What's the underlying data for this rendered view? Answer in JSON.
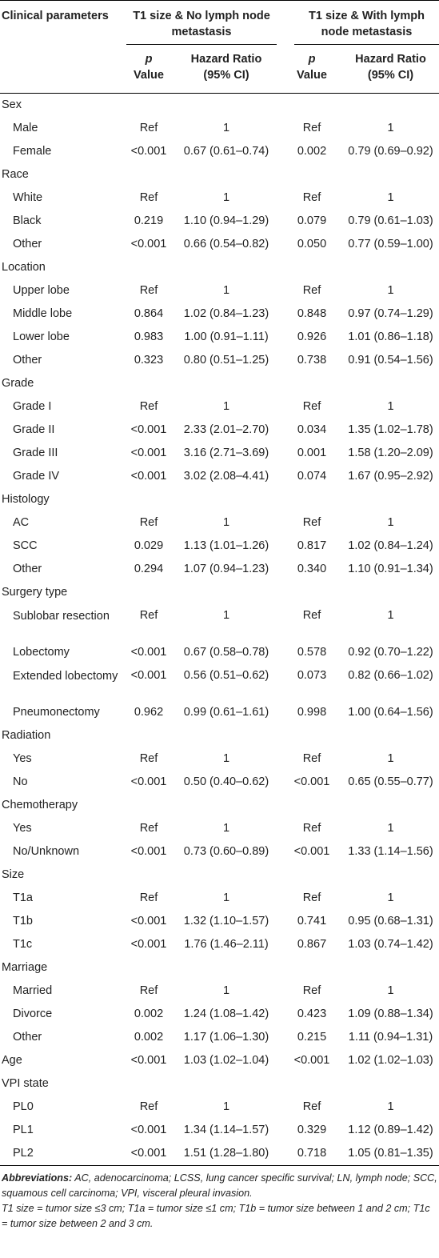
{
  "header": {
    "col_label": "Clinical parameters",
    "group1": "T1 size & No lymph node metastasis",
    "group2": "T1 size & With lymph node metastasis",
    "p_letter": "p",
    "p_word": "Value",
    "hr_line1": "Hazard Ratio",
    "hr_line2": "(95% CI)"
  },
  "rows": [
    {
      "type": "cat",
      "label": "Sex"
    },
    {
      "type": "sub",
      "label": "Male",
      "p1": "Ref",
      "hr1": "1",
      "p2": "Ref",
      "hr2": "1"
    },
    {
      "type": "sub",
      "label": "Female",
      "p1": "<0.001",
      "hr1": "0.67 (0.61–0.74)",
      "p2": "0.002",
      "hr2": "0.79 (0.69–0.92)"
    },
    {
      "type": "cat",
      "label": "Race"
    },
    {
      "type": "sub",
      "label": "White",
      "p1": "Ref",
      "hr1": "1",
      "p2": "Ref",
      "hr2": "1"
    },
    {
      "type": "sub",
      "label": "Black",
      "p1": "0.219",
      "hr1": "1.10 (0.94–1.29)",
      "p2": "0.079",
      "hr2": "0.79 (0.61–1.03)"
    },
    {
      "type": "sub",
      "label": "Other",
      "p1": "<0.001",
      "hr1": "0.66 (0.54–0.82)",
      "p2": "0.050",
      "hr2": "0.77 (0.59–1.00)"
    },
    {
      "type": "cat",
      "label": "Location"
    },
    {
      "type": "sub",
      "label": "Upper lobe",
      "p1": "Ref",
      "hr1": "1",
      "p2": "Ref",
      "hr2": "1"
    },
    {
      "type": "sub",
      "label": "Middle lobe",
      "p1": "0.864",
      "hr1": "1.02 (0.84–1.23)",
      "p2": "0.848",
      "hr2": "0.97 (0.74–1.29)"
    },
    {
      "type": "sub",
      "label": "Lower lobe",
      "p1": "0.983",
      "hr1": "1.00 (0.91–1.11)",
      "p2": "0.926",
      "hr2": "1.01 (0.86–1.18)"
    },
    {
      "type": "sub",
      "label": "Other",
      "p1": "0.323",
      "hr1": "0.80 (0.51–1.25)",
      "p2": "0.738",
      "hr2": "0.91 (0.54–1.56)"
    },
    {
      "type": "cat",
      "label": "Grade"
    },
    {
      "type": "sub",
      "label": "Grade I",
      "p1": "Ref",
      "hr1": "1",
      "p2": "Ref",
      "hr2": "1"
    },
    {
      "type": "sub",
      "label": "Grade II",
      "p1": "<0.001",
      "hr1": "2.33 (2.01–2.70)",
      "p2": "0.034",
      "hr2": "1.35 (1.02–1.78)"
    },
    {
      "type": "sub",
      "label": "Grade III",
      "p1": "<0.001",
      "hr1": "3.16 (2.71–3.69)",
      "p2": "0.001",
      "hr2": "1.58 (1.20–2.09)"
    },
    {
      "type": "sub",
      "label": "Grade IV",
      "p1": "<0.001",
      "hr1": "3.02 (2.08–4.41)",
      "p2": "0.074",
      "hr2": "1.67 (0.95–2.92)"
    },
    {
      "type": "cat",
      "label": "Histology"
    },
    {
      "type": "sub",
      "label": "AC",
      "p1": "Ref",
      "hr1": "1",
      "p2": "Ref",
      "hr2": "1"
    },
    {
      "type": "sub",
      "label": "SCC",
      "p1": "0.029",
      "hr1": "1.13 (1.01–1.26)",
      "p2": "0.817",
      "hr2": "1.02 (0.84–1.24)"
    },
    {
      "type": "sub",
      "label": "Other",
      "p1": "0.294",
      "hr1": "1.07 (0.94–1.23)",
      "p2": "0.340",
      "hr2": "1.10 (0.91–1.34)"
    },
    {
      "type": "cat",
      "label": "Surgery type"
    },
    {
      "type": "sub",
      "tall": true,
      "label": "Sublobar resection",
      "p1": "Ref",
      "hr1": "1",
      "p2": "Ref",
      "hr2": "1"
    },
    {
      "type": "sub",
      "label": "Lobectomy",
      "p1": "<0.001",
      "hr1": "0.67 (0.58–0.78)",
      "p2": "0.578",
      "hr2": "0.92 (0.70–1.22)"
    },
    {
      "type": "sub",
      "tall": true,
      "label": "Extended lobectomy",
      "p1": "<0.001",
      "hr1": "0.56 (0.51–0.62)",
      "p2": "0.073",
      "hr2": "0.82 (0.66–1.02)"
    },
    {
      "type": "sub",
      "label": "Pneumonectomy",
      "p1": "0.962",
      "hr1": "0.99 (0.61–1.61)",
      "p2": "0.998",
      "hr2": "1.00 (0.64–1.56)"
    },
    {
      "type": "cat",
      "label": "Radiation"
    },
    {
      "type": "sub",
      "label": "Yes",
      "p1": "Ref",
      "hr1": "1",
      "p2": "Ref",
      "hr2": "1"
    },
    {
      "type": "sub",
      "label": "No",
      "p1": "<0.001",
      "hr1": "0.50 (0.40–0.62)",
      "p2": "<0.001",
      "hr2": "0.65 (0.55–0.77)"
    },
    {
      "type": "cat",
      "label": "Chemotherapy"
    },
    {
      "type": "sub",
      "label": "Yes",
      "p1": "Ref",
      "hr1": "1",
      "p2": "Ref",
      "hr2": "1"
    },
    {
      "type": "sub",
      "label": "No/Unknown",
      "p1": "<0.001",
      "hr1": "0.73 (0.60–0.89)",
      "p2": "<0.001",
      "hr2": "1.33 (1.14–1.56)"
    },
    {
      "type": "cat",
      "label": "Size"
    },
    {
      "type": "sub",
      "label": "T1a",
      "p1": "Ref",
      "hr1": "1",
      "p2": "Ref",
      "hr2": "1"
    },
    {
      "type": "sub",
      "label": "T1b",
      "p1": "<0.001",
      "hr1": "1.32 (1.10–1.57)",
      "p2": "0.741",
      "hr2": "0.95 (0.68–1.31)"
    },
    {
      "type": "sub",
      "label": "T1c",
      "p1": "<0.001",
      "hr1": "1.76 (1.46–2.11)",
      "p2": "0.867",
      "hr2": "1.03 (0.74–1.42)"
    },
    {
      "type": "cat",
      "label": "Marriage"
    },
    {
      "type": "sub",
      "label": "Married",
      "p1": "Ref",
      "hr1": "1",
      "p2": "Ref",
      "hr2": "1"
    },
    {
      "type": "sub",
      "label": "Divorce",
      "p1": "0.002",
      "hr1": "1.24 (1.08–1.42)",
      "p2": "0.423",
      "hr2": "1.09 (0.88–1.34)"
    },
    {
      "type": "sub",
      "label": "Other",
      "p1": "0.002",
      "hr1": "1.17 (1.06–1.30)",
      "p2": "0.215",
      "hr2": "1.11 (0.94–1.31)"
    },
    {
      "type": "cat",
      "label": "Age",
      "p1": "<0.001",
      "hr1": "1.03 (1.02–1.04)",
      "p2": "<0.001",
      "hr2": "1.02 (1.02–1.03)"
    },
    {
      "type": "cat",
      "label": "VPI state"
    },
    {
      "type": "sub",
      "label": "PL0",
      "p1": "Ref",
      "hr1": "1",
      "p2": "Ref",
      "hr2": "1"
    },
    {
      "type": "sub",
      "label": "PL1",
      "p1": "<0.001",
      "hr1": "1.34 (1.14–1.57)",
      "p2": "0.329",
      "hr2": "1.12 (0.89–1.42)"
    },
    {
      "type": "sub",
      "label": "PL2",
      "p1": "<0.001",
      "hr1": "1.51 (1.28–1.80)",
      "p2": "0.718",
      "hr2": "1.05 (0.81–1.35)"
    }
  ],
  "footnote": {
    "abbr_label": "Abbreviations:",
    "abbr_text": " AC, adenocarcinoma; LCSS, lung cancer specific survival; LN, lymph node; SCC, squamous cell carcinoma; VPI, visceral pleural invasion.",
    "size_text": "T1 size = tumor size ≤3 cm; T1a = tumor size ≤1 cm; T1b = tumor size between 1 and 2 cm; T1c = tumor size between 2 and 3 cm."
  }
}
